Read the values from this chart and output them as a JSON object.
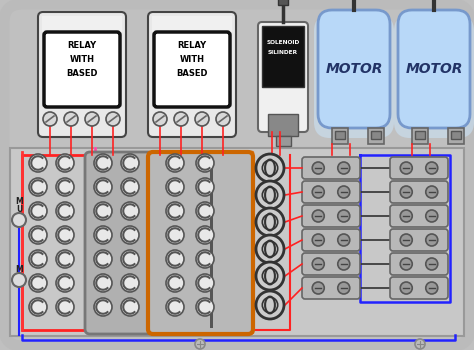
{
  "bg_color": "#c0c0c0",
  "relay_text": [
    "RELAY",
    "WITH",
    "BASED"
  ],
  "solenoid_text": [
    "SOLENOID",
    "SILINDER"
  ],
  "motor_text": "MOTOR",
  "red_wire": "#ff2222",
  "blue_wire": "#2222ff",
  "orange_wire": "#dd7722",
  "pink_wire": "#ff88aa",
  "dark_wire": "#333333",
  "motor_color": "#b8d8f8",
  "motor_glow": "#ddeeff"
}
